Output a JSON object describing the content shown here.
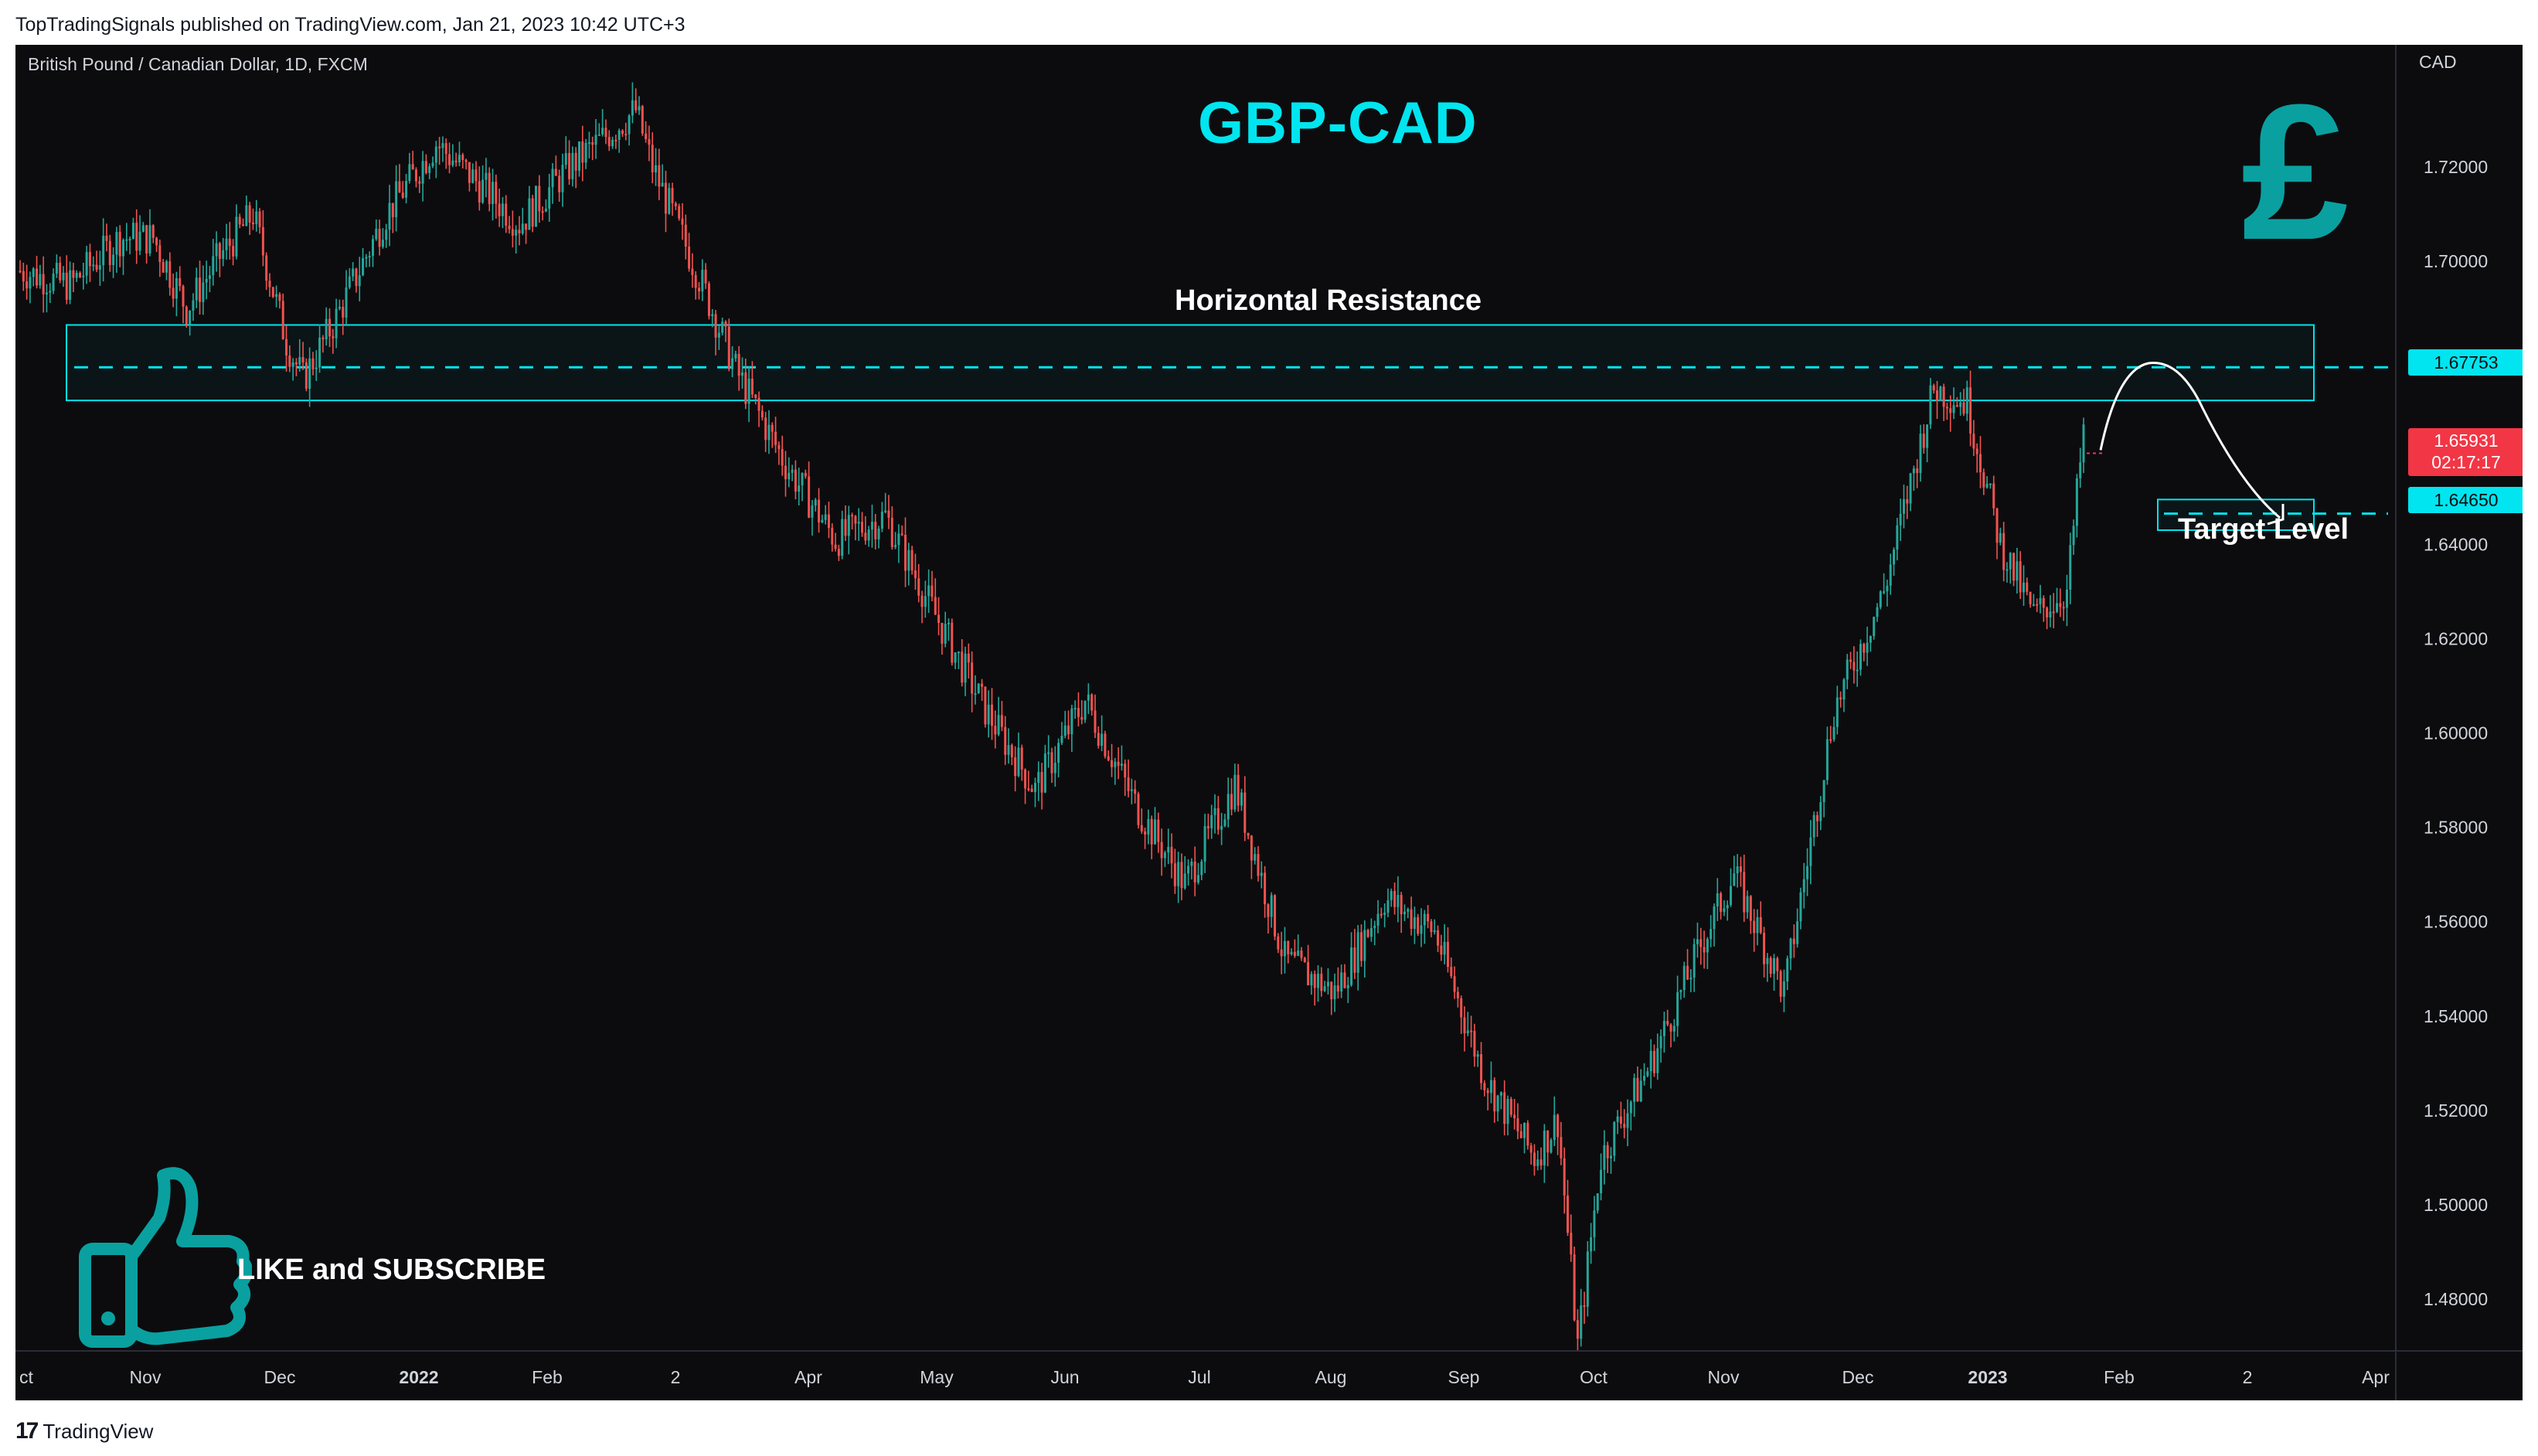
{
  "header": {
    "publisher": "TopTradingSignals published on TradingView.com, Jan 21, 2023 10:42 UTC+3"
  },
  "footer": {
    "logo": "17",
    "brand": "TradingView"
  },
  "chart_data": {
    "type": "candlestick",
    "symbol": "British Pound / Canadian Dollar, 1D, FXCM",
    "title": "GBP-CAD",
    "currency": "CAD",
    "ylim": [
      1.46,
      1.74
    ],
    "y_ticks": [
      "1.72000",
      "1.70000",
      "1.68000",
      "1.66000",
      "1.64000",
      "1.62000",
      "1.60000",
      "1.58000",
      "1.56000",
      "1.54000",
      "1.52000",
      "1.50000",
      "1.48000"
    ],
    "x_ticks": [
      "ct",
      "Nov",
      "Dec",
      "2022",
      "Feb",
      "2",
      "Apr",
      "May",
      "Jun",
      "Jul",
      "Aug",
      "Sep",
      "Oct",
      "Nov",
      "Dec",
      "2023",
      "Feb",
      "2",
      "Apr"
    ],
    "x_tick_bold": [
      "2022",
      "2023"
    ],
    "anchors": [
      [
        0,
        1.698
      ],
      [
        15,
        1.695
      ],
      [
        30,
        1.705
      ],
      [
        40,
        1.705
      ],
      [
        50,
        1.69
      ],
      [
        60,
        1.701
      ],
      [
        70,
        1.71
      ],
      [
        80,
        1.683
      ],
      [
        85,
        1.675
      ],
      [
        95,
        1.688
      ],
      [
        110,
        1.71
      ],
      [
        125,
        1.725
      ],
      [
        140,
        1.715
      ],
      [
        150,
        1.708
      ],
      [
        165,
        1.72
      ],
      [
        185,
        1.732
      ],
      [
        190,
        1.72
      ],
      [
        205,
        1.695
      ],
      [
        215,
        1.677
      ],
      [
        230,
        1.657
      ],
      [
        245,
        1.641
      ],
      [
        260,
        1.646
      ],
      [
        275,
        1.625
      ],
      [
        290,
        1.605
      ],
      [
        305,
        1.588
      ],
      [
        320,
        1.607
      ],
      [
        335,
        1.585
      ],
      [
        350,
        1.568
      ],
      [
        365,
        1.589
      ],
      [
        380,
        1.552
      ],
      [
        395,
        1.545
      ],
      [
        410,
        1.565
      ],
      [
        425,
        1.558
      ],
      [
        440,
        1.527
      ],
      [
        455,
        1.51
      ],
      [
        462,
        1.518
      ],
      [
        468,
        1.47
      ],
      [
        475,
        1.51
      ],
      [
        490,
        1.53
      ],
      [
        505,
        1.555
      ],
      [
        515,
        1.57
      ],
      [
        530,
        1.545
      ],
      [
        545,
        1.605
      ],
      [
        560,
        1.63
      ],
      [
        575,
        1.673
      ],
      [
        585,
        1.67
      ],
      [
        595,
        1.64
      ],
      [
        605,
        1.625
      ],
      [
        615,
        1.63
      ],
      [
        620,
        1.664
      ]
    ],
    "n_bars": 621,
    "levels": {
      "resistance": {
        "label": "Horizontal Resistance",
        "value": 1.67753,
        "value_text": "1.67753",
        "zone": [
          1.6705,
          1.6865
        ]
      },
      "target": {
        "label": "Target Level",
        "value": 1.6465,
        "value_text": "1.64650",
        "zone": [
          1.643,
          1.6495
        ]
      },
      "last_price": {
        "value": 1.65931,
        "value_text": "1.65931",
        "countdown": "02:17:17"
      }
    }
  },
  "annotations": {
    "like_text": "LIKE and SUBSCRIBE"
  },
  "colors": {
    "up": "#26a69a",
    "down": "#ef5350",
    "accent": "#00e5ef",
    "background": "#0c0c0e",
    "teal_icon": "#0aa0a0"
  },
  "icons": {
    "pound": "£"
  }
}
